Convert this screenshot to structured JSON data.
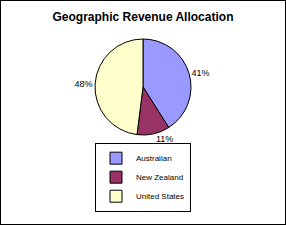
{
  "chart_data": {
    "type": "pie",
    "title": "Geographic Revenue Allocation",
    "categories": [
      "Australian",
      "New Zealand",
      "United States"
    ],
    "values": [
      41,
      11,
      48
    ],
    "value_labels": [
      "41%",
      "11%",
      "48%"
    ],
    "colors": [
      "#9999ff",
      "#993366",
      "#ffffcc"
    ],
    "data_labels": true,
    "legend": "bottom"
  }
}
